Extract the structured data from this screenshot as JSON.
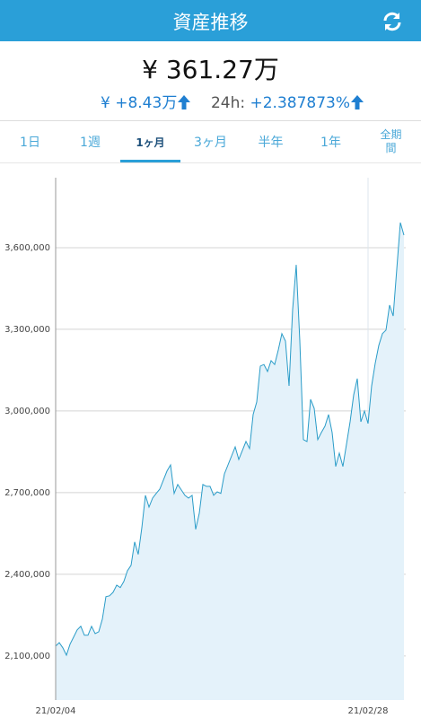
{
  "header": {
    "title": "資産推移"
  },
  "summary": {
    "total": "¥ 361.27万",
    "change": "¥ +8.43万",
    "period_label": "24h:",
    "period_change": "+2.387873%"
  },
  "tabs": [
    "1日",
    "1週",
    "1ヶ月",
    "3ヶ月",
    "半年",
    "1年",
    "全期間"
  ],
  "active_tab": "1ヶ月",
  "chart_data": {
    "type": "area",
    "color": "#2a9cc8",
    "fill": "#e4f2fa",
    "categories": [
      "21/02/04",
      null,
      null,
      null,
      null,
      null,
      null,
      null,
      null,
      null,
      null,
      null,
      null,
      null,
      null,
      null,
      null,
      null,
      null,
      null,
      null,
      null,
      null,
      null,
      null,
      null,
      null,
      null,
      null,
      null,
      null,
      null,
      null,
      null,
      null,
      null,
      null,
      null,
      null,
      null,
      null,
      null,
      null,
      null,
      null,
      null,
      null,
      null,
      null,
      null,
      null,
      null,
      null,
      null,
      null,
      null,
      null,
      null,
      null,
      null,
      null,
      null,
      null,
      null,
      null,
      null,
      null,
      null,
      null,
      null,
      null,
      null,
      null,
      null,
      null,
      null,
      null,
      null,
      null,
      null,
      null,
      null,
      null,
      null,
      null,
      null,
      null,
      "21/02/28",
      null,
      null,
      null,
      null,
      null,
      null,
      null,
      null,
      null,
      null
    ],
    "values": [
      2136000,
      2149000,
      2130000,
      2103000,
      2143000,
      2169000,
      2196000,
      2209000,
      2176000,
      2176000,
      2209000,
      2182000,
      2189000,
      2235000,
      2318000,
      2321000,
      2334000,
      2360000,
      2351000,
      2374000,
      2413000,
      2433000,
      2519000,
      2473000,
      2571000,
      2690000,
      2647000,
      2680000,
      2697000,
      2713000,
      2746000,
      2779000,
      2802000,
      2697000,
      2730000,
      2710000,
      2690000,
      2680000,
      2690000,
      2565000,
      2624000,
      2730000,
      2723000,
      2723000,
      2690000,
      2703000,
      2697000,
      2769000,
      2802000,
      2835000,
      2868000,
      2822000,
      2855000,
      2888000,
      2862000,
      2987000,
      3033000,
      3165000,
      3171000,
      3145000,
      3185000,
      3171000,
      3224000,
      3284000,
      3257000,
      3092000,
      3373000,
      3537000,
      3257000,
      2895000,
      2888000,
      3043000,
      3010000,
      2895000,
      2921000,
      2944000,
      2987000,
      2921000,
      2796000,
      2845000,
      2796000,
      2878000,
      2960000,
      3059000,
      3119000,
      2960000,
      3000000,
      2954000,
      3092000,
      3175000,
      3241000,
      3284000,
      3297000,
      3389000,
      3349000,
      3521000,
      3692000,
      3646000
    ],
    "ylim": [
      1938000,
      3857000
    ],
    "yticks": [
      {
        "value": 2100000,
        "label": "2,100,000"
      },
      {
        "value": 2400000,
        "label": "2,400,000"
      },
      {
        "value": 2700000,
        "label": "2,700,000"
      },
      {
        "value": 3000000,
        "label": "3,000,000"
      },
      {
        "value": 3300000,
        "label": "3,300,000"
      },
      {
        "value": 3600000,
        "label": "3,600,000"
      }
    ],
    "grid": true
  }
}
